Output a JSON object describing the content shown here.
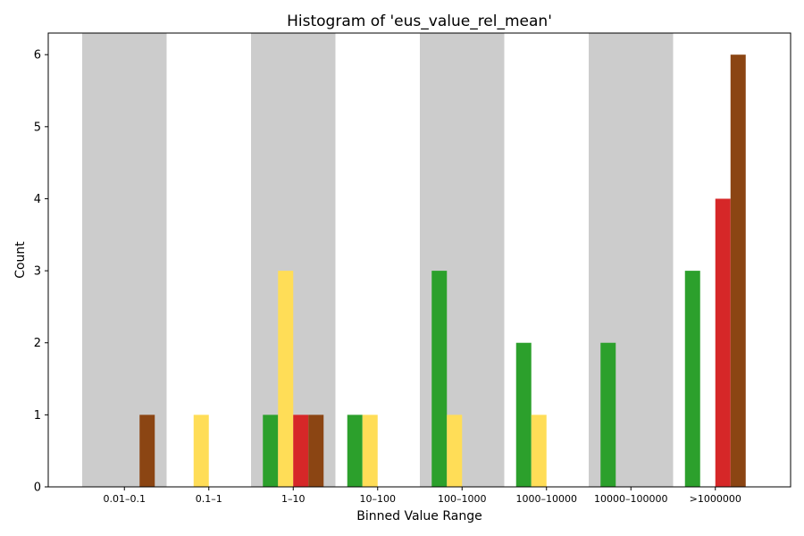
{
  "chart_data": {
    "type": "bar",
    "title": "Histogram of 'eus_value_rel_mean'",
    "xlabel": "Binned Value Range",
    "ylabel": "Count",
    "categories": [
      "0.01–0.1",
      "0.1–1",
      "1–10",
      "10–100",
      "100–1000",
      "1000–10000",
      "10000–100000",
      ">1000000"
    ],
    "series": [
      {
        "color": "#2ca02c",
        "values": [
          0,
          0,
          1,
          1,
          3,
          2,
          2,
          3
        ]
      },
      {
        "color": "#ffdd57",
        "values": [
          0,
          1,
          3,
          1,
          1,
          1,
          0,
          0
        ]
      },
      {
        "color": "#d62728",
        "values": [
          0,
          0,
          1,
          0,
          0,
          0,
          0,
          4
        ]
      },
      {
        "color": "#8b4513",
        "values": [
          1,
          0,
          1,
          0,
          0,
          0,
          0,
          6
        ]
      }
    ],
    "yticks": [
      0,
      1,
      2,
      3,
      4,
      5,
      6
    ],
    "ylim": [
      0,
      6.3
    ],
    "band_color": "#cccccc",
    "shaded_bins": [
      "0.01–0.1",
      "1–10",
      "100–1000",
      "10000–100000"
    ],
    "grid": false,
    "legend": false
  }
}
